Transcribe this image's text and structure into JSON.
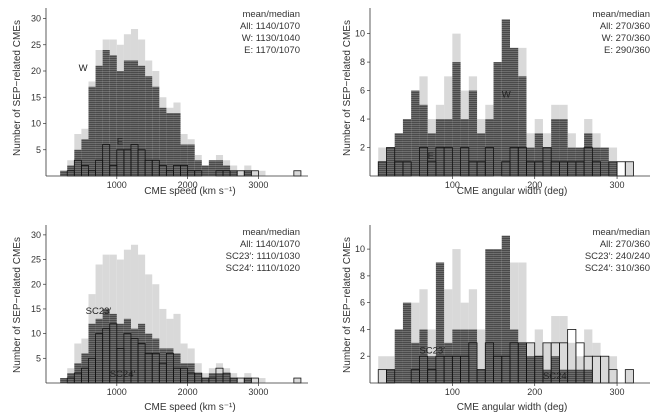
{
  "chart_data": [
    {
      "id": "p1",
      "type": "bar",
      "xlabel": "CME speed (km s⁻¹)",
      "ylabel": "Number of SEP−related CMEs",
      "xlim": [
        0,
        3700
      ],
      "ylim": [
        0,
        32
      ],
      "xticks": [
        1000,
        2000,
        3000
      ],
      "yticks": [
        5,
        10,
        15,
        20,
        25,
        30
      ],
      "bin_start": 200,
      "bin_width": 100,
      "legend": [
        "mean/median",
        "All: 1140/1070",
        "W: 1130/1040",
        "E: 1170/1070"
      ],
      "annotations": [
        {
          "text": "W",
          "x": 460,
          "y": 20
        },
        {
          "text": "E",
          "x": 1000,
          "y": 6
        }
      ],
      "series": [
        {
          "name": "All",
          "style": "light",
          "values": [
            1,
            3,
            8,
            9,
            18,
            24,
            26,
            26,
            25,
            27,
            28,
            26,
            22,
            20,
            15,
            13,
            14,
            8,
            7,
            4,
            2,
            3,
            4,
            3,
            2,
            1,
            2,
            1,
            1,
            0,
            0,
            0,
            0,
            1
          ]
        },
        {
          "name": "W",
          "style": "dark",
          "values": [
            1,
            2,
            5,
            7,
            17,
            21,
            24,
            23,
            20,
            22,
            22,
            21,
            19,
            17,
            13,
            12,
            12,
            6,
            6,
            3,
            2,
            3,
            3,
            2,
            1,
            0,
            1,
            0,
            0,
            0,
            0,
            0,
            0,
            0
          ]
        },
        {
          "name": "E",
          "style": "outline",
          "values": [
            0,
            1,
            3,
            2,
            1,
            3,
            6,
            2,
            5,
            5,
            6,
            5,
            3,
            3,
            2,
            1,
            2,
            2,
            1,
            1,
            0,
            0,
            1,
            1,
            1,
            1,
            1,
            1,
            0,
            0,
            0,
            0,
            0,
            1
          ]
        }
      ]
    },
    {
      "id": "p2",
      "type": "bar",
      "xlabel": "CME angular width (deg)",
      "ylabel": "Number of SEP−related CMEs",
      "xlim": [
        0,
        340
      ],
      "ylim": [
        0,
        11.8
      ],
      "xticks": [
        100,
        200,
        300
      ],
      "yticks": [
        2,
        4,
        6,
        8,
        10
      ],
      "bin_start": 0,
      "bin_width": 10,
      "legend": [
        "mean/median",
        "All: 270/360",
        "W: 270/360",
        "E: 290/360"
      ],
      "annotations": [
        {
          "text": "W",
          "x": 160,
          "y": 5.5
        },
        {
          "text": "E",
          "x": 70,
          "y": 1.2
        }
      ],
      "series": [
        {
          "name": "All",
          "style": "light",
          "values": [
            0,
            2,
            2,
            3,
            4,
            6,
            7,
            4,
            5,
            7,
            10,
            6,
            7,
            4,
            5,
            8,
            11,
            9,
            9,
            3,
            4,
            3,
            5,
            5,
            3,
            2,
            4,
            3,
            2,
            2,
            0,
            1
          ]
        },
        {
          "name": "W",
          "style": "dark",
          "values": [
            0,
            1,
            2,
            3,
            4,
            6,
            5,
            3,
            4,
            4,
            8,
            4,
            6,
            3,
            4,
            8,
            11,
            9,
            7,
            2,
            3,
            2,
            4,
            4,
            2,
            2,
            3,
            2,
            2,
            1,
            0,
            0
          ]
        },
        {
          "name": "E",
          "style": "outline",
          "values": [
            0,
            1,
            2,
            1,
            1,
            0,
            2,
            1,
            2,
            2,
            0,
            2,
            1,
            1,
            2,
            0,
            1,
            2,
            2,
            1,
            1,
            2,
            1,
            1,
            1,
            1,
            2,
            1,
            0,
            1,
            1,
            1
          ]
        }
      ]
    },
    {
      "id": "p3",
      "type": "bar",
      "xlabel": "CME speed (km s⁻¹)",
      "ylabel": "Number of SEP−related CMEs",
      "xlim": [
        0,
        3700
      ],
      "ylim": [
        0,
        32
      ],
      "xticks": [
        1000,
        2000,
        3000
      ],
      "yticks": [
        5,
        10,
        15,
        20,
        25,
        30
      ],
      "bin_start": 200,
      "bin_width": 100,
      "legend": [
        "mean/median",
        "All: 1140/1070",
        "SC23′: 1110/1030",
        "SC24′: 1110/1020"
      ],
      "annotations": [
        {
          "text": "SC23′",
          "x": 560,
          "y": 14
        },
        {
          "text": "SC24′",
          "x": 900,
          "y": 1.2
        }
      ],
      "series": [
        {
          "name": "All",
          "style": "light",
          "values": [
            1,
            3,
            8,
            9,
            18,
            24,
            26,
            26,
            25,
            27,
            28,
            26,
            22,
            20,
            15,
            13,
            14,
            8,
            7,
            4,
            2,
            3,
            4,
            3,
            2,
            1,
            2,
            1,
            1,
            0,
            0,
            0,
            0,
            1
          ]
        },
        {
          "name": "SC23′",
          "style": "dark",
          "values": [
            1,
            2,
            4,
            6,
            12,
            13,
            15,
            14,
            12,
            13,
            11,
            12,
            10,
            9,
            7,
            7,
            6,
            4,
            4,
            2,
            1,
            2,
            2,
            2,
            1,
            0,
            1,
            0,
            0,
            0,
            0,
            0,
            0,
            0
          ]
        },
        {
          "name": "SC24′",
          "style": "outline",
          "values": [
            0,
            1,
            2,
            3,
            5,
            10,
            11,
            12,
            7,
            10,
            9,
            8,
            6,
            6,
            4,
            6,
            3,
            3,
            2,
            2,
            1,
            1,
            3,
            2,
            1,
            1,
            1,
            1,
            0,
            0,
            0,
            0,
            0,
            1
          ]
        }
      ]
    },
    {
      "id": "p4",
      "type": "bar",
      "xlabel": "CME angular width (deg)",
      "ylabel": "Number of SEP−related CMEs",
      "xlim": [
        0,
        340
      ],
      "ylim": [
        0,
        11.8
      ],
      "xticks": [
        100,
        200,
        300
      ],
      "yticks": [
        2,
        4,
        6,
        8,
        10
      ],
      "bin_start": 0,
      "bin_width": 10,
      "legend": [
        "mean/median",
        "All: 270/360",
        "SC23′: 240/240",
        "SC24′: 310/360"
      ],
      "annotations": [
        {
          "text": "SC23′",
          "x": 60,
          "y": 2.2
        },
        {
          "text": "SC24′",
          "x": 210,
          "y": 0.3
        }
      ],
      "series": [
        {
          "name": "All",
          "style": "light",
          "values": [
            0,
            2,
            2,
            3,
            4,
            6,
            7,
            4,
            5,
            7,
            10,
            6,
            7,
            4,
            5,
            8,
            11,
            9,
            9,
            3,
            4,
            3,
            5,
            5,
            3,
            2,
            4,
            3,
            2,
            2,
            0,
            1
          ]
        },
        {
          "name": "SC23′",
          "style": "dark",
          "values": [
            0,
            0,
            1,
            4,
            6,
            3,
            4,
            2,
            9,
            3,
            4,
            4,
            4,
            1,
            10,
            10,
            11,
            4,
            3,
            2,
            2,
            1,
            2,
            1,
            1,
            1,
            1,
            0,
            0,
            0,
            0,
            0
          ]
        },
        {
          "name": "SC24′",
          "style": "outline",
          "values": [
            0,
            1,
            1,
            0,
            0,
            1,
            2,
            1,
            2,
            2,
            2,
            2,
            3,
            1,
            3,
            2,
            2,
            3,
            3,
            3,
            2,
            3,
            3,
            3,
            4,
            3,
            2,
            2,
            2,
            1,
            0,
            1
          ]
        }
      ]
    }
  ]
}
